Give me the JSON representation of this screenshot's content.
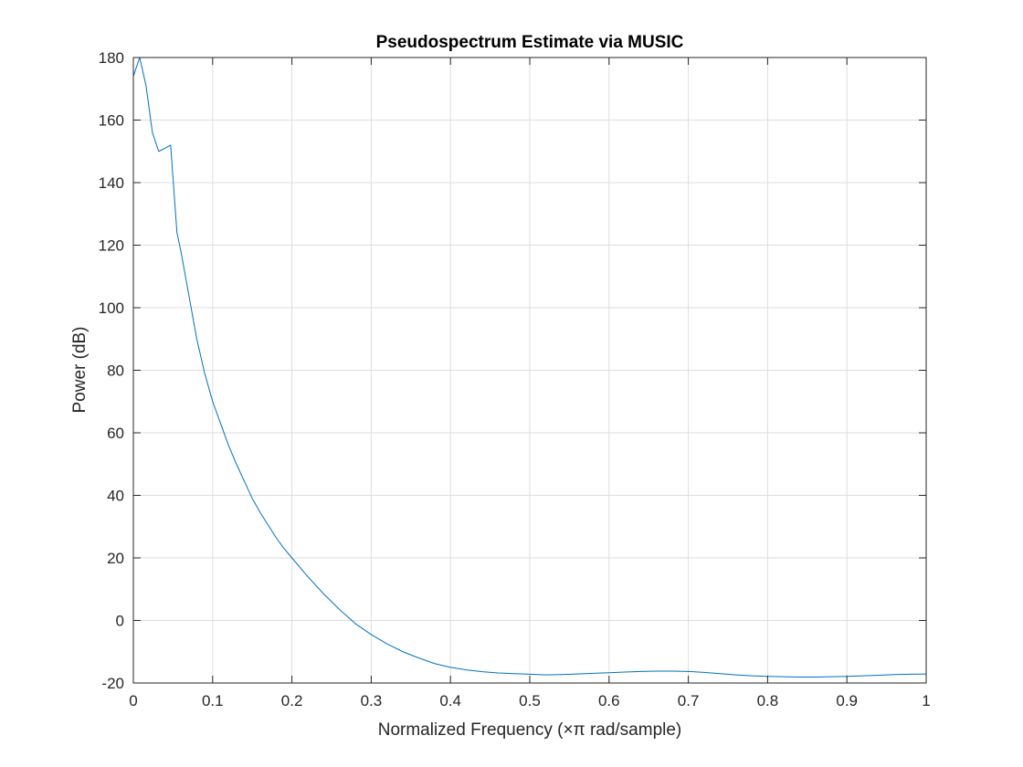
{
  "chart_data": {
    "type": "line",
    "title": "Pseudospectrum Estimate via MUSIC",
    "xlabel": "Normalized Frequency  (×π rad/sample)",
    "ylabel": "Power (dB)",
    "xlim": [
      0,
      1
    ],
    "ylim": [
      -20,
      180
    ],
    "xticks": [
      0,
      0.1,
      0.2,
      0.3,
      0.4,
      0.5,
      0.6,
      0.7,
      0.8,
      0.9,
      1
    ],
    "xtick_labels": [
      "0",
      "0.1",
      "0.2",
      "0.3",
      "0.4",
      "0.5",
      "0.6",
      "0.7",
      "0.8",
      "0.9",
      "1"
    ],
    "yticks": [
      -20,
      0,
      20,
      40,
      60,
      80,
      100,
      120,
      140,
      160,
      180
    ],
    "ytick_labels": [
      "-20",
      "0",
      "20",
      "40",
      "60",
      "80",
      "100",
      "120",
      "140",
      "160",
      "180"
    ],
    "grid": true,
    "colors": {
      "line": "#0072bd",
      "grid": "#dedede",
      "axis": "#262626"
    },
    "series": [
      {
        "x": [
          0,
          0.008,
          0.016,
          0.024,
          0.032,
          0.04,
          0.047,
          0.055,
          0.06,
          0.07,
          0.08,
          0.09,
          0.1,
          0.11,
          0.12,
          0.13,
          0.14,
          0.15,
          0.16,
          0.17,
          0.18,
          0.19,
          0.2,
          0.22,
          0.24,
          0.26,
          0.28,
          0.3,
          0.32,
          0.34,
          0.36,
          0.38,
          0.4,
          0.42,
          0.44,
          0.46,
          0.48,
          0.5,
          0.52,
          0.54,
          0.56,
          0.58,
          0.6,
          0.62,
          0.64,
          0.66,
          0.68,
          0.7,
          0.72,
          0.74,
          0.76,
          0.78,
          0.8,
          0.82,
          0.84,
          0.86,
          0.88,
          0.9,
          0.92,
          0.94,
          0.96,
          0.98,
          1
        ],
        "y": [
          174,
          180,
          171,
          156,
          150,
          151,
          152,
          124,
          118,
          104,
          90,
          79,
          70,
          63,
          56,
          50,
          44.5,
          39,
          34.5,
          30.5,
          26.5,
          23,
          20,
          14,
          8.5,
          3.5,
          -1,
          -4.5,
          -7.5,
          -10,
          -12,
          -13.8,
          -15,
          -15.8,
          -16.4,
          -16.8,
          -17,
          -17.2,
          -17.4,
          -17.3,
          -17.1,
          -16.9,
          -16.7,
          -16.5,
          -16.3,
          -16.2,
          -16.2,
          -16.3,
          -16.6,
          -17,
          -17.4,
          -17.7,
          -17.9,
          -18,
          -18.1,
          -18.1,
          -18,
          -17.9,
          -17.7,
          -17.5,
          -17.3,
          -17.2,
          -17.1
        ]
      }
    ]
  }
}
